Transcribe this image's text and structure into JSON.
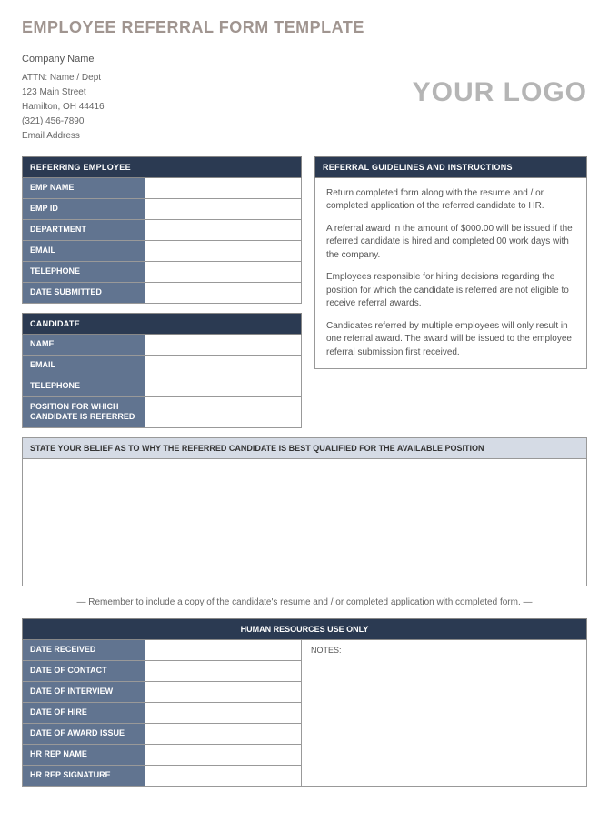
{
  "title": "EMPLOYEE REFERRAL FORM TEMPLATE",
  "company": {
    "name": "Company Name",
    "attn": "ATTN: Name / Dept",
    "street": "123 Main Street",
    "city": "Hamilton, OH  44416",
    "phone": "(321) 456-7890",
    "email": "Email Address"
  },
  "logo_text": "YOUR LOGO",
  "referring": {
    "header": "REFERRING EMPLOYEE",
    "fields": [
      {
        "label": "EMP NAME",
        "value": ""
      },
      {
        "label": "EMP ID",
        "value": ""
      },
      {
        "label": "DEPARTMENT",
        "value": ""
      },
      {
        "label": "EMAIL",
        "value": ""
      },
      {
        "label": "TELEPHONE",
        "value": ""
      },
      {
        "label": "DATE SUBMITTED",
        "value": ""
      }
    ]
  },
  "candidate": {
    "header": "CANDIDATE",
    "fields": [
      {
        "label": "NAME",
        "value": ""
      },
      {
        "label": "EMAIL",
        "value": ""
      },
      {
        "label": "TELEPHONE",
        "value": ""
      },
      {
        "label": "POSITION FOR WHICH CANDIDATE IS REFERRED",
        "value": ""
      }
    ]
  },
  "guidelines": {
    "header": "REFERRAL GUIDELINES AND INSTRUCTIONS",
    "paragraphs": [
      "Return completed form along with the resume and / or completed application of the referred candidate to HR.",
      "A referral award in the amount of $000.00 will be issued if the referred candidate is hired and completed 00 work days with the company.",
      "Employees responsible for hiring decisions regarding the position for which the candidate is referred are not eligible to receive referral awards.",
      "Candidates referred by multiple employees will only result in one referral award.  The award will be issued to the employee referral submission first received."
    ]
  },
  "belief": {
    "header": "STATE YOUR BELIEF AS TO WHY THE REFERRED CANDIDATE IS BEST QUALIFIED FOR THE AVAILABLE POSITION",
    "value": ""
  },
  "reminder": "— Remember to include a copy of the candidate's resume and / or completed application with completed form. —",
  "hr": {
    "header": "HUMAN RESOURCES USE ONLY",
    "notes_label": "NOTES:",
    "fields": [
      {
        "label": "DATE RECEIVED",
        "value": ""
      },
      {
        "label": "DATE OF CONTACT",
        "value": ""
      },
      {
        "label": "DATE OF INTERVIEW",
        "value": ""
      },
      {
        "label": "DATE OF HIRE",
        "value": ""
      },
      {
        "label": "DATE OF AWARD ISSUE",
        "value": ""
      },
      {
        "label": "HR REP NAME",
        "value": ""
      },
      {
        "label": "HR REP SIGNATURE",
        "value": ""
      }
    ]
  },
  "colors": {
    "title": "#a09590",
    "header_bg": "#2b3a52",
    "label_bg": "#617490",
    "belief_bg": "#d5dbe5",
    "logo": "#b5b5b5",
    "border": "#999999"
  }
}
